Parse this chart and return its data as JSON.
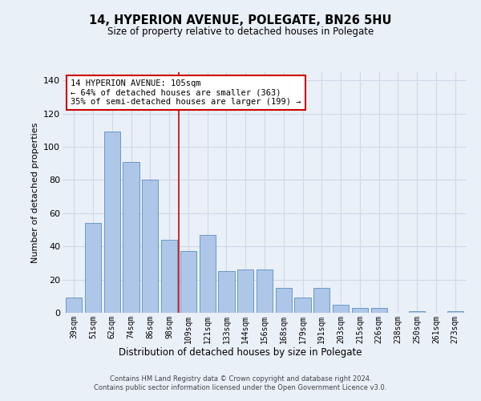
{
  "title1": "14, HYPERION AVENUE, POLEGATE, BN26 5HU",
  "title2": "Size of property relative to detached houses in Polegate",
  "xlabel": "Distribution of detached houses by size in Polegate",
  "ylabel": "Number of detached properties",
  "categories": [
    "39sqm",
    "51sqm",
    "62sqm",
    "74sqm",
    "86sqm",
    "98sqm",
    "109sqm",
    "121sqm",
    "133sqm",
    "144sqm",
    "156sqm",
    "168sqm",
    "179sqm",
    "191sqm",
    "203sqm",
    "215sqm",
    "226sqm",
    "238sqm",
    "250sqm",
    "261sqm",
    "273sqm"
  ],
  "values": [
    9,
    54,
    109,
    91,
    80,
    44,
    37,
    47,
    25,
    26,
    26,
    15,
    9,
    15,
    5,
    3,
    3,
    0,
    1,
    0,
    1
  ],
  "bar_color": "#aec6e8",
  "bar_edge_color": "#5a8fc2",
  "grid_color": "#d0d8e8",
  "background_color": "#eaf0f8",
  "annotation_text_line1": "14 HYPERION AVENUE: 105sqm",
  "annotation_text_line2": "← 64% of detached houses are smaller (363)",
  "annotation_text_line3": "35% of semi-detached houses are larger (199) →",
  "annotation_box_color": "#ffffff",
  "annotation_line_color": "#cc0000",
  "ylim": [
    0,
    145
  ],
  "yticks": [
    0,
    20,
    40,
    60,
    80,
    100,
    120,
    140
  ],
  "red_line_x": 5.5,
  "footer1": "Contains HM Land Registry data © Crown copyright and database right 2024.",
  "footer2": "Contains public sector information licensed under the Open Government Licence v3.0."
}
